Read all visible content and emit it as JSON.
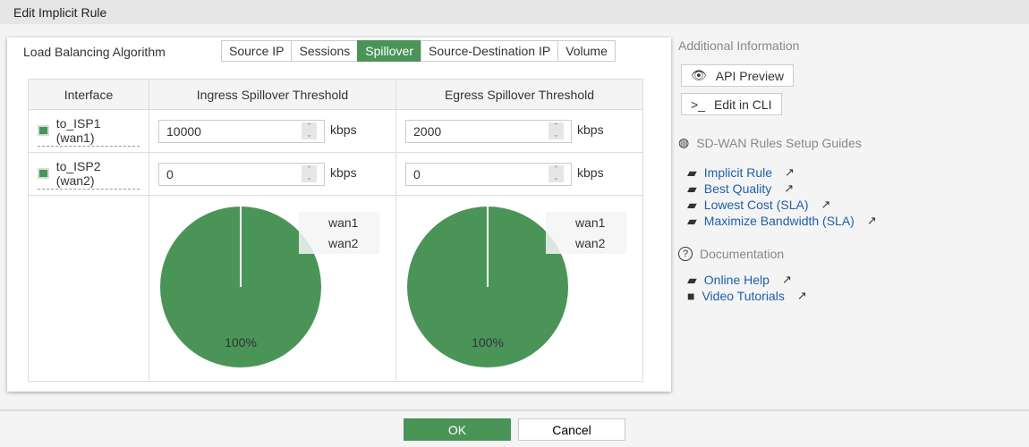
{
  "window": {
    "title": "Edit Implicit Rule"
  },
  "algorithm": {
    "label": "Load Balancing Algorithm",
    "tabs": [
      "Source IP",
      "Sessions",
      "Spillover",
      "Source-Destination IP",
      "Volume"
    ],
    "active": "Spillover"
  },
  "table": {
    "headers": [
      "Interface",
      "Ingress Spillover Threshold",
      "Egress Spillover Threshold"
    ],
    "rows": [
      {
        "interface": "to_ISP1 (wan1)",
        "ingress": "10000",
        "egress": "2000",
        "unit": "kbps"
      },
      {
        "interface": "to_ISP2 (wan2)",
        "ingress": "0",
        "egress": "0",
        "unit": "kbps"
      }
    ]
  },
  "chart_data": [
    {
      "type": "pie",
      "categories": [
        "wan1",
        "wan2"
      ],
      "values": [
        10000,
        0
      ],
      "data_labels": [
        "100%",
        ""
      ],
      "legend": "top-right",
      "color": "#4a9458"
    },
    {
      "type": "pie",
      "categories": [
        "wan1",
        "wan2"
      ],
      "values": [
        2000,
        0
      ],
      "data_labels": [
        "100%",
        ""
      ],
      "legend": "top-right",
      "color": "#4a9458"
    }
  ],
  "side": {
    "additional_info": "Additional Information",
    "api_preview": "API Preview",
    "edit_cli": "Edit in CLI",
    "guides_title": "SD-WAN Rules Setup Guides",
    "guides": [
      "Implicit Rule",
      "Best Quality",
      "Lowest Cost (SLA)",
      "Maximize Bandwidth (SLA)"
    ],
    "docs_title": "Documentation",
    "docs": [
      "Online Help",
      "Video Tutorials"
    ]
  },
  "footer": {
    "ok": "OK",
    "cancel": "Cancel"
  },
  "colors": {
    "accent": "#4a9458",
    "link": "#1f5fa6"
  }
}
